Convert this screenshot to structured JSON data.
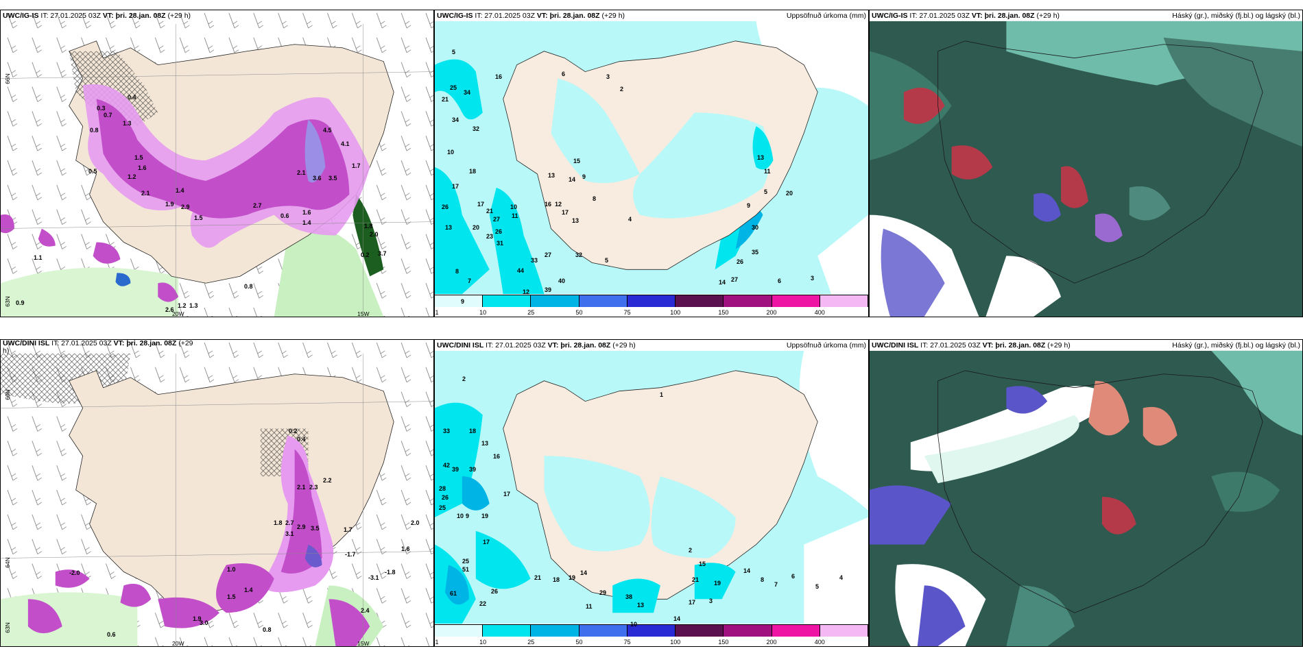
{
  "panels": {
    "p1": {
      "model": "UWC/IG-IS",
      "it": "IT: 27.01.2025 03Z",
      "vt_label": "VT:",
      "vt": "þri. 28.jan. 08Z",
      "lead": "(+29 h)",
      "title_right": ""
    },
    "p2": {
      "model": "UWC/IG-IS",
      "it": "IT: 27.01.2025 03Z",
      "vt_label": "VT:",
      "vt": "þri. 28.jan. 08Z",
      "lead": "(+29 h)",
      "title_right": "Uppsöfnuð úrkoma (mm)"
    },
    "p3": {
      "model": "UWC/IG-IS",
      "it": "IT: 27.01.2025 03Z",
      "vt_label": "VT:",
      "vt": "þri. 28.jan. 08Z",
      "lead": "(+29 h)",
      "title_right": "Háský (gr.), miðský (fj.bl.) og lágský (bl.)"
    },
    "p4": {
      "model": "UWC/DINI ISL",
      "it": "IT: 27.01.2025 03Z",
      "vt_label": "VT:",
      "vt": "þri. 28.jan. 08Z",
      "lead": "(+29",
      "lead2": "h)",
      "title_right": ""
    },
    "p5": {
      "model": "UWC/DINI ISL",
      "it": "IT: 27.01.2025 03Z",
      "vt_label": "VT:",
      "vt": "þri. 28.jan. 08Z",
      "lead": "(+29 h)",
      "title_right": "Uppsöfnuð úrkoma (mm)"
    },
    "p6": {
      "model": "UWC/DINI ISL",
      "it": "IT: 27.01.2025 03Z",
      "vt_label": "VT:",
      "vt": "þri. 28.jan. 08Z",
      "lead": "(+29 h)",
      "title_right": "Háský (gr.), miðský (fj.bl.) og lágský (bl.)"
    }
  },
  "colorbar": {
    "ticks": [
      "1",
      "10",
      "25",
      "50",
      "75",
      "100",
      "150",
      "200",
      "400"
    ],
    "colors": [
      "#e0fcfc",
      "#00e5ee",
      "#00b4e6",
      "#3f6fec",
      "#2a2ad4",
      "#5a0f4e",
      "#a0107e",
      "#ee14a4",
      "#f4b8f4"
    ]
  },
  "axes": {
    "lon_20w": "20W",
    "lon_15w": "15W",
    "lat_66n": "66N",
    "lat_64n": "64N",
    "lat_63n": "63N"
  },
  "p1_values": [
    "0.4",
    "0.3",
    "0.7",
    "1.3",
    "0.8",
    "1.5",
    "1.6",
    "1.2",
    "2.1",
    "1.4",
    "1.9",
    "2.9",
    "1.5",
    "0.5",
    "2.1",
    "4.5",
    "4.1",
    "3.6",
    "3.5",
    "1.7",
    "1.8",
    "2.0",
    "3.7",
    "0.2",
    "2.7",
    "0.6",
    "1.6",
    "1.4",
    "0.8",
    "0.9",
    "1.1",
    "2.6",
    "1.2",
    "1.3"
  ],
  "p2_values": [
    "5",
    "25",
    "34",
    "21",
    "34",
    "32",
    "16",
    "10",
    "17",
    "18",
    "26",
    "20",
    "13",
    "17",
    "21",
    "27",
    "23",
    "26",
    "31",
    "10",
    "11",
    "15",
    "13",
    "14",
    "9",
    "8",
    "12",
    "16",
    "17",
    "13",
    "4",
    "5",
    "3",
    "2",
    "6",
    "13",
    "11",
    "9",
    "5",
    "20",
    "30",
    "35",
    "26",
    "27",
    "14",
    "6",
    "3",
    "40",
    "39",
    "12",
    "44",
    "33",
    "27",
    "32",
    "9",
    "8",
    "7"
  ],
  "p4_values": [
    "0.2",
    "0.4",
    "2.1",
    "2.3",
    "2.7",
    "3.1",
    "3.5",
    "1.8",
    "2.9",
    "1.7",
    "1.0",
    "2.0",
    "1.6",
    "3.0",
    "0.6",
    "0.8",
    "1.9",
    "2.2",
    "1.4",
    "1.5",
    "-2.0",
    "-1.7",
    "-1.8",
    "-3.1",
    "2.4"
  ],
  "p5_values": [
    "2",
    "33",
    "18",
    "13",
    "16",
    "42",
    "39",
    "39",
    "28",
    "26",
    "25",
    "10",
    "17",
    "9",
    "19",
    "17",
    "51",
    "25",
    "61",
    "22",
    "26",
    "21",
    "18",
    "19",
    "14",
    "29",
    "38",
    "13",
    "11",
    "10",
    "14",
    "17",
    "21",
    "19",
    "15",
    "14",
    "8",
    "7",
    "6",
    "5",
    "4",
    "3",
    "2",
    "1"
  ],
  "colors": {
    "land": "#f3e6d6",
    "sea_light": "#b8f8f8",
    "sea_mid": "#00e5ee",
    "purple": "#c24fc9",
    "purple_light": "#e69bf0",
    "green": "#c8f0c0",
    "green_dark": "#1b5e20",
    "cloud_dark": "#2e5a4f",
    "cloud_mid": "#4f8a7a",
    "cloud_light": "#6fbcaa"
  }
}
